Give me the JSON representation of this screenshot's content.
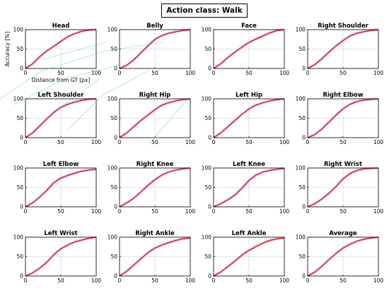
{
  "figure_title": "Action class: Walk",
  "colors": {
    "line": "#b42d12",
    "shadow": "#f7b6ee",
    "artifact": "#3cb8e8",
    "grid": "#cccccc"
  },
  "chart_data": [
    {
      "type": "line",
      "title": "Head",
      "xlabel": "Distance from GT [px]",
      "ylabel": "Accuracy [%]",
      "xlim": [
        0,
        100
      ],
      "ylim": [
        0,
        100
      ],
      "x_ticks": [
        0,
        50,
        100
      ],
      "y_ticks": [
        0,
        50,
        100
      ],
      "grid": true,
      "x": [
        0,
        10,
        20,
        30,
        40,
        50,
        60,
        70,
        80,
        90,
        100
      ],
      "series": [
        {
          "values": [
            0,
            12,
            30,
            45,
            57,
            70,
            82,
            90,
            96,
            99,
            100
          ]
        }
      ]
    },
    {
      "type": "line",
      "title": "Belly",
      "xlim": [
        0,
        100
      ],
      "ylim": [
        0,
        100
      ],
      "x_ticks": [
        0,
        50,
        100
      ],
      "y_ticks": [
        0,
        50,
        100
      ],
      "grid": true,
      "x": [
        0,
        10,
        20,
        30,
        40,
        50,
        60,
        70,
        80,
        90,
        100
      ],
      "series": [
        {
          "values": [
            0,
            8,
            22,
            40,
            58,
            75,
            85,
            91,
            95,
            98,
            100
          ]
        }
      ]
    },
    {
      "type": "line",
      "title": "Face",
      "xlim": [
        0,
        100
      ],
      "ylim": [
        0,
        100
      ],
      "x_ticks": [
        0,
        50,
        100
      ],
      "y_ticks": [
        0,
        50,
        100
      ],
      "grid": true,
      "x": [
        0,
        10,
        20,
        30,
        40,
        50,
        60,
        70,
        80,
        90,
        100
      ],
      "series": [
        {
          "values": [
            0,
            12,
            28,
            42,
            55,
            67,
            76,
            84,
            92,
            98,
            100
          ]
        }
      ]
    },
    {
      "type": "line",
      "title": "Right Shoulder",
      "xlim": [
        0,
        100
      ],
      "ylim": [
        0,
        100
      ],
      "x_ticks": [
        0,
        50,
        100
      ],
      "y_ticks": [
        0,
        50,
        100
      ],
      "grid": true,
      "x": [
        0,
        10,
        20,
        30,
        40,
        50,
        60,
        70,
        80,
        90,
        100
      ],
      "series": [
        {
          "values": [
            0,
            10,
            25,
            42,
            58,
            72,
            84,
            91,
            95,
            98,
            100
          ]
        }
      ]
    },
    {
      "type": "line",
      "title": "Left Shoulder",
      "xlim": [
        0,
        100
      ],
      "ylim": [
        0,
        100
      ],
      "x_ticks": [
        0,
        50,
        100
      ],
      "y_ticks": [
        0,
        50,
        100
      ],
      "grid": true,
      "x": [
        0,
        10,
        20,
        30,
        40,
        50,
        60,
        70,
        80,
        90,
        100
      ],
      "series": [
        {
          "values": [
            0,
            12,
            30,
            48,
            65,
            78,
            86,
            92,
            96,
            99,
            100
          ]
        }
      ]
    },
    {
      "type": "line",
      "title": "Right Hip",
      "xlim": [
        0,
        100
      ],
      "ylim": [
        0,
        100
      ],
      "x_ticks": [
        0,
        50,
        100
      ],
      "y_ticks": [
        0,
        50,
        100
      ],
      "grid": true,
      "x": [
        0,
        10,
        20,
        30,
        40,
        50,
        60,
        70,
        80,
        90,
        100
      ],
      "series": [
        {
          "values": [
            0,
            12,
            28,
            44,
            58,
            72,
            84,
            90,
            95,
            98,
            100
          ]
        }
      ]
    },
    {
      "type": "line",
      "title": "Left Hip",
      "xlim": [
        0,
        100
      ],
      "ylim": [
        0,
        100
      ],
      "x_ticks": [
        0,
        50,
        100
      ],
      "y_ticks": [
        0,
        50,
        100
      ],
      "grid": true,
      "x": [
        0,
        10,
        20,
        30,
        40,
        50,
        60,
        70,
        80,
        90,
        100
      ],
      "series": [
        {
          "values": [
            0,
            12,
            28,
            44,
            60,
            74,
            84,
            90,
            95,
            98,
            100
          ]
        }
      ]
    },
    {
      "type": "line",
      "title": "Right Elbow",
      "xlim": [
        0,
        100
      ],
      "ylim": [
        0,
        100
      ],
      "x_ticks": [
        0,
        50,
        100
      ],
      "y_ticks": [
        0,
        50,
        100
      ],
      "grid": true,
      "x": [
        0,
        10,
        20,
        30,
        40,
        50,
        60,
        70,
        80,
        90,
        100
      ],
      "series": [
        {
          "values": [
            0,
            8,
            22,
            40,
            58,
            74,
            86,
            93,
            97,
            99,
            100
          ]
        }
      ]
    },
    {
      "type": "line",
      "title": "Left Elbow",
      "xlim": [
        0,
        100
      ],
      "ylim": [
        0,
        100
      ],
      "x_ticks": [
        0,
        50,
        100
      ],
      "y_ticks": [
        0,
        50,
        100
      ],
      "grid": true,
      "x": [
        0,
        10,
        20,
        30,
        40,
        50,
        60,
        70,
        80,
        90,
        100
      ],
      "series": [
        {
          "values": [
            0,
            10,
            25,
            42,
            62,
            74,
            81,
            87,
            92,
            95,
            97
          ]
        }
      ]
    },
    {
      "type": "line",
      "title": "Right Knee",
      "xlim": [
        0,
        100
      ],
      "ylim": [
        0,
        100
      ],
      "x_ticks": [
        0,
        50,
        100
      ],
      "y_ticks": [
        0,
        50,
        100
      ],
      "grid": true,
      "x": [
        0,
        10,
        20,
        30,
        40,
        50,
        60,
        70,
        80,
        90,
        100
      ],
      "series": [
        {
          "values": [
            0,
            10,
            22,
            38,
            55,
            70,
            82,
            90,
            95,
            98,
            100
          ]
        }
      ]
    },
    {
      "type": "line",
      "title": "Left Knee",
      "xlim": [
        0,
        100
      ],
      "ylim": [
        0,
        100
      ],
      "x_ticks": [
        0,
        50,
        100
      ],
      "y_ticks": [
        0,
        50,
        100
      ],
      "grid": true,
      "x": [
        0,
        10,
        20,
        30,
        40,
        50,
        60,
        70,
        80,
        90,
        100
      ],
      "series": [
        {
          "values": [
            0,
            8,
            18,
            30,
            48,
            68,
            82,
            90,
            94,
            97,
            99
          ]
        }
      ]
    },
    {
      "type": "line",
      "title": "Right Wrist",
      "xlim": [
        0,
        100
      ],
      "ylim": [
        0,
        100
      ],
      "x_ticks": [
        0,
        50,
        100
      ],
      "y_ticks": [
        0,
        50,
        100
      ],
      "grid": true,
      "x": [
        0,
        10,
        20,
        30,
        40,
        50,
        60,
        70,
        80,
        90,
        100
      ],
      "series": [
        {
          "values": [
            0,
            8,
            20,
            35,
            52,
            72,
            86,
            94,
            98,
            99,
            100
          ]
        }
      ]
    },
    {
      "type": "line",
      "title": "Left Wrist",
      "xlim": [
        0,
        100
      ],
      "ylim": [
        0,
        100
      ],
      "x_ticks": [
        0,
        50,
        100
      ],
      "y_ticks": [
        0,
        50,
        100
      ],
      "grid": true,
      "x": [
        0,
        10,
        20,
        30,
        40,
        50,
        60,
        70,
        80,
        90,
        100
      ],
      "series": [
        {
          "values": [
            0,
            8,
            20,
            35,
            55,
            70,
            80,
            88,
            93,
            97,
            100
          ]
        }
      ]
    },
    {
      "type": "line",
      "title": "Right Ankle",
      "xlim": [
        0,
        100
      ],
      "ylim": [
        0,
        100
      ],
      "x_ticks": [
        0,
        50,
        100
      ],
      "y_ticks": [
        0,
        50,
        100
      ],
      "grid": true,
      "x": [
        0,
        10,
        20,
        30,
        40,
        50,
        60,
        70,
        80,
        90,
        100
      ],
      "series": [
        {
          "values": [
            0,
            12,
            28,
            44,
            60,
            72,
            80,
            86,
            92,
            96,
            98
          ]
        }
      ]
    },
    {
      "type": "line",
      "title": "Left Ankle",
      "xlim": [
        0,
        100
      ],
      "ylim": [
        0,
        100
      ],
      "x_ticks": [
        0,
        50,
        100
      ],
      "y_ticks": [
        0,
        50,
        100
      ],
      "grid": true,
      "x": [
        0,
        10,
        20,
        30,
        40,
        50,
        60,
        70,
        80,
        90,
        100
      ],
      "series": [
        {
          "values": [
            0,
            10,
            24,
            38,
            54,
            66,
            76,
            85,
            92,
            96,
            98
          ]
        }
      ]
    },
    {
      "type": "line",
      "title": "Average",
      "xlim": [
        0,
        100
      ],
      "ylim": [
        0,
        100
      ],
      "x_ticks": [
        0,
        50,
        100
      ],
      "y_ticks": [
        0,
        50,
        100
      ],
      "grid": true,
      "x": [
        0,
        10,
        20,
        30,
        40,
        50,
        60,
        70,
        80,
        90,
        100
      ],
      "series": [
        {
          "values": [
            0,
            10,
            25,
            42,
            58,
            72,
            82,
            90,
            95,
            98,
            100
          ]
        }
      ]
    }
  ]
}
